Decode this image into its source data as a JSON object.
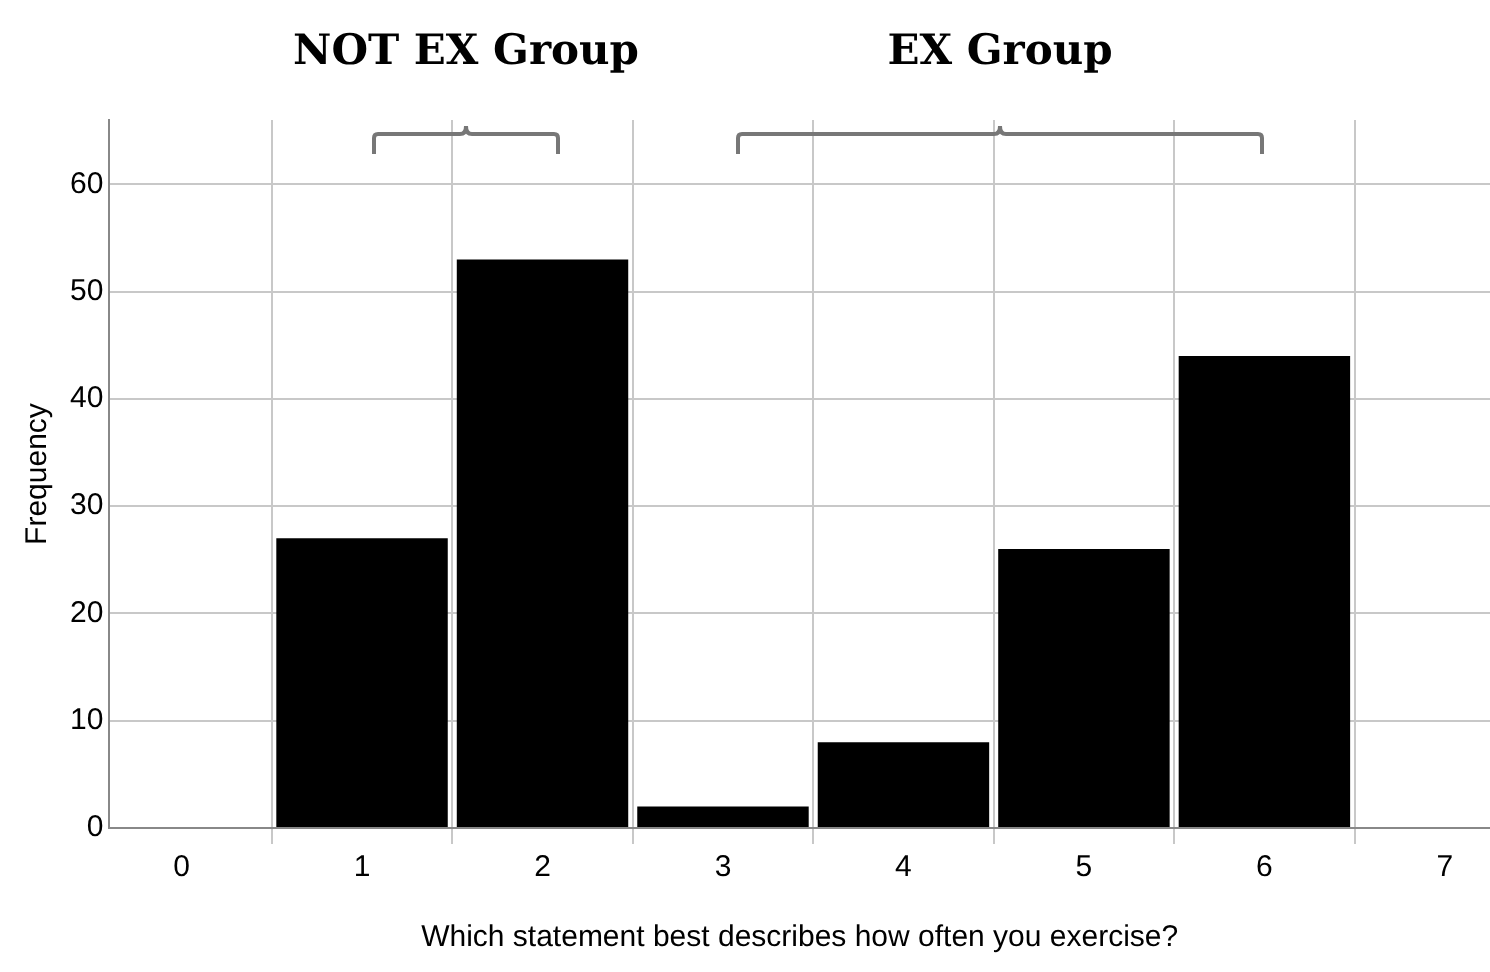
{
  "chart_data": {
    "type": "bar",
    "xlabel": "Which statement best describes how often you exercise?",
    "ylabel": "Frequency",
    "x": [
      1,
      2,
      3,
      4,
      5,
      6
    ],
    "values": [
      27,
      53,
      2,
      8,
      26,
      44
    ],
    "color": "#000000",
    "xlim": [
      -0.4,
      7.25
    ],
    "xticks": [
      0,
      1,
      2,
      3,
      4,
      5,
      6,
      7
    ],
    "ylim": [
      0,
      66
    ],
    "yticks": [
      0,
      10,
      20,
      30,
      40,
      50,
      60
    ],
    "grid": true,
    "legend": false,
    "annotations": [
      "NOT EX Group",
      "EX Group"
    ]
  }
}
